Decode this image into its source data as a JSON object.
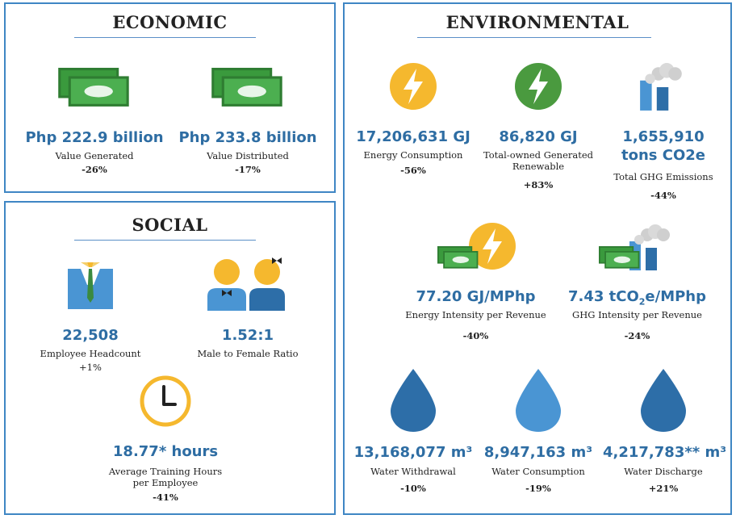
{
  "economic": {
    "title": "ECONOMIC",
    "items": [
      {
        "icon": "money-icon",
        "value": "Php 222.9 billion",
        "label": "Value Generated",
        "change": "-26%"
      },
      {
        "icon": "money-icon",
        "value": "Php 233.8 billion",
        "label": "Value Distributed",
        "change": "-17%"
      }
    ]
  },
  "social": {
    "title": "SOCIAL",
    "items": [
      {
        "icon": "employee-icon",
        "value": "22,508",
        "label": "Employee Headcount",
        "change": "+1%"
      },
      {
        "icon": "male-female-icon",
        "value": "1.52:1",
        "label": "Male to Female Ratio"
      },
      {
        "icon": "clock-icon",
        "value": "18.77* hours",
        "label_line1": "Average Training Hours",
        "label_line2": "per Employee",
        "change": "-41%"
      }
    ]
  },
  "environmental": {
    "title": "ENVIRONMENTAL",
    "items": [
      {
        "icon": "energy-bolt-icon",
        "value": "17,206,631 GJ",
        "label": "Energy Consumption",
        "change": "-56%"
      },
      {
        "icon": "renewable-bolt-icon",
        "value": "86,820 GJ",
        "label_line1": "Total-owned Generated",
        "label_line2": "Renewable",
        "change": "+83%"
      },
      {
        "icon": "factory-emissions-icon",
        "value_line1": "1,655,910",
        "value_line2": "tons CO2e",
        "label": "Total GHG Emissions",
        "change": "-44%"
      },
      {
        "icon": "money-energy-icon",
        "value": "77.20 GJ/MPhp",
        "label": "Energy Intensity per Revenue",
        "change": "-40%"
      },
      {
        "icon": "money-factory-icon",
        "value_pre": "7.43 tCO",
        "value_sub": "2",
        "value_post": "e/MPhp",
        "label": "GHG Intensity per Revenue",
        "change": "-24%"
      },
      {
        "icon": "water-drop-icon",
        "value": "13,168,077 m³",
        "label": "Water Withdrawal",
        "change": "-10%"
      },
      {
        "icon": "water-drop-icon",
        "value": "8,947,163 m³",
        "label": "Water Consumption",
        "change": "-19%"
      },
      {
        "icon": "water-drop-icon",
        "value": "4,217,783** m³",
        "label": "Water Discharge",
        "change": "+21%"
      }
    ]
  },
  "colors": {
    "border": "#3f86c4",
    "value_text": "#2e6da3",
    "money_green": "#3a9a3d",
    "bolt_yellow": "#f5b82e",
    "bolt_green": "#4a9a3f",
    "drop_dark": "#2d6ea8",
    "drop_light": "#4a95d3"
  }
}
